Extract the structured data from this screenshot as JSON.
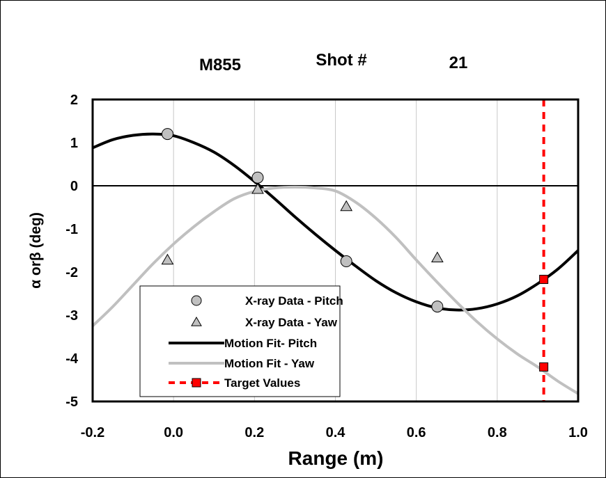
{
  "chart_data": {
    "type": "scatter",
    "title": {
      "left": "M855",
      "middle": "Shot #",
      "right": "21"
    },
    "xlabel": "Range (m)",
    "ylabel": "α orβ (deg)",
    "xlim": [
      -0.2,
      1.0
    ],
    "ylim": [
      -5,
      2
    ],
    "x_ticks": [
      -0.2,
      0.0,
      0.2,
      0.4,
      0.6,
      0.8,
      1.0
    ],
    "x_tick_labels": [
      "-0.2",
      "0.0",
      "0.2",
      "0.4",
      "0.6",
      "0.8",
      "1.0"
    ],
    "y_ticks": [
      2,
      1,
      0,
      -1,
      -2,
      -3,
      -4,
      -5
    ],
    "y_tick_labels": [
      "2",
      "1",
      "0",
      "-1",
      "-2",
      "-3",
      "-4",
      "-5"
    ],
    "grid": "vertical",
    "legend_position": "lower-left",
    "series": [
      {
        "name": "X-ray Data - Pitch",
        "kind": "markers",
        "marker": "circle",
        "color": "#c0c0c0",
        "x": [
          -0.015,
          0.208,
          0.427,
          0.652
        ],
        "y": [
          1.2,
          0.19,
          -1.75,
          -2.8
        ]
      },
      {
        "name": "X-ray Data - Yaw",
        "kind": "markers",
        "marker": "triangle",
        "color": "#c0c0c0",
        "x": [
          -0.015,
          0.208,
          0.427,
          0.652
        ],
        "y": [
          -1.72,
          -0.08,
          -0.48,
          -1.67
        ]
      },
      {
        "name": "Motion Fit- Pitch",
        "kind": "line",
        "color": "#000000",
        "x": [
          -0.2,
          -0.15,
          -0.1,
          -0.05,
          0.0,
          0.05,
          0.1,
          0.15,
          0.2,
          0.25,
          0.3,
          0.35,
          0.4,
          0.45,
          0.5,
          0.55,
          0.6,
          0.65,
          0.7,
          0.75,
          0.8,
          0.85,
          0.9,
          0.95,
          1.0
        ],
        "y": [
          0.88,
          1.07,
          1.17,
          1.2,
          1.16,
          1.0,
          0.78,
          0.47,
          0.1,
          -0.3,
          -0.72,
          -1.12,
          -1.5,
          -1.86,
          -2.2,
          -2.48,
          -2.69,
          -2.83,
          -2.88,
          -2.85,
          -2.74,
          -2.55,
          -2.27,
          -1.93,
          -1.5
        ]
      },
      {
        "name": "Motion Fit - Yaw",
        "kind": "line",
        "color": "#c0c0c0",
        "x": [
          -0.2,
          -0.15,
          -0.1,
          -0.05,
          0.0,
          0.05,
          0.1,
          0.15,
          0.2,
          0.25,
          0.3,
          0.35,
          0.4,
          0.45,
          0.5,
          0.55,
          0.6,
          0.65,
          0.7,
          0.75,
          0.8,
          0.85,
          0.9,
          0.95,
          1.0
        ],
        "y": [
          -3.25,
          -2.8,
          -2.3,
          -1.8,
          -1.35,
          -0.95,
          -0.6,
          -0.3,
          -0.13,
          -0.05,
          -0.03,
          -0.05,
          -0.12,
          -0.38,
          -0.75,
          -1.2,
          -1.72,
          -2.22,
          -2.7,
          -3.15,
          -3.55,
          -3.9,
          -4.2,
          -4.53,
          -4.82
        ]
      },
      {
        "name": "Target Values",
        "kind": "markers",
        "marker": "square",
        "color": "#ff0000",
        "x": [
          0.915,
          0.915
        ],
        "y": [
          -2.17,
          -4.2
        ],
        "vertical_line_x": 0.915
      }
    ]
  }
}
